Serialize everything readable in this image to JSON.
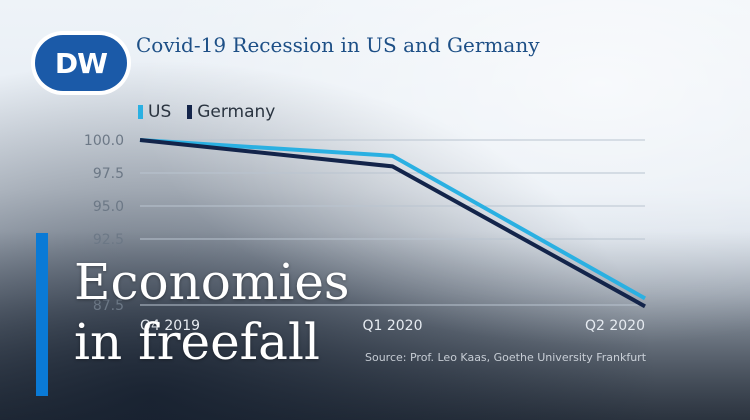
{
  "brand": {
    "logo_text": "DW",
    "logo_color": "#1b5aa8"
  },
  "headline": {
    "line1": "Economies",
    "line2": "in freefall",
    "accent_color": "#0a7ad6"
  },
  "chart_data": {
    "type": "line",
    "title": "Covid-19 Recession in US and Germany",
    "categories": [
      "Q4 2019",
      "Q1 2020",
      "Q2 2020"
    ],
    "series": [
      {
        "name": "US",
        "color": "#2ab0e2",
        "values": [
          100.0,
          98.8,
          88.0
        ]
      },
      {
        "name": "Germany",
        "color": "#13244a",
        "values": [
          100.0,
          98.0,
          87.4
        ]
      }
    ],
    "yticks": [
      "100.0",
      "97.5",
      "95.0",
      "92.5",
      "87.5"
    ],
    "ylim": [
      87.5,
      100.0
    ],
    "grid": true,
    "legend": "top-left",
    "source": "Source: Prof. Leo Kaas, Goethe University Frankfurt"
  }
}
